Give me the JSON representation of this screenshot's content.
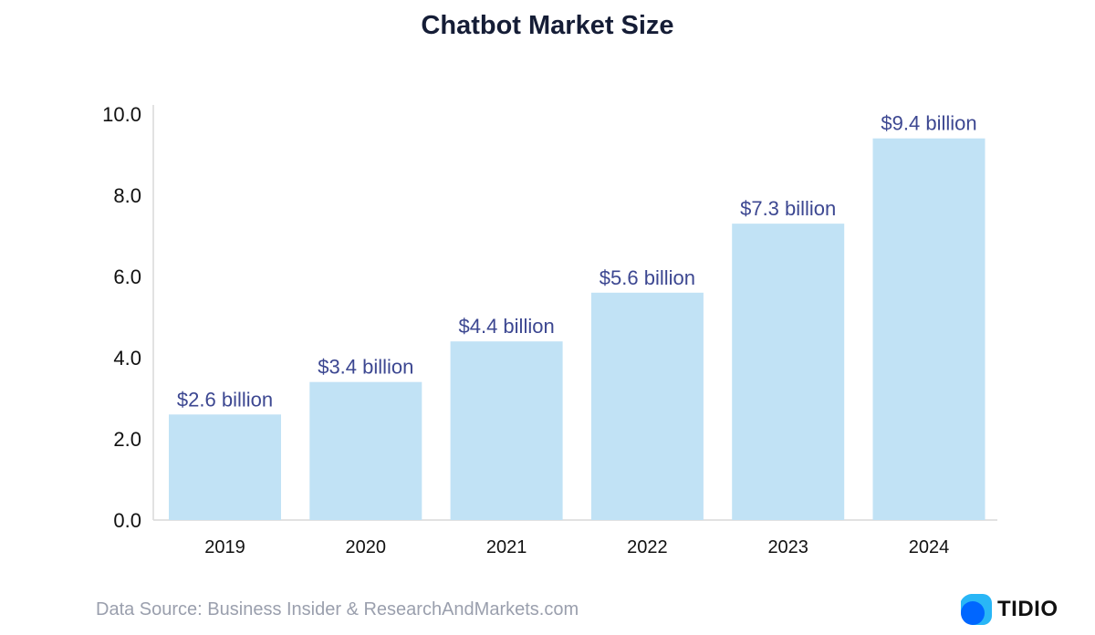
{
  "chart_data": {
    "type": "bar",
    "title": "Chatbot Market Size",
    "xlabel": "",
    "ylabel": "",
    "categories": [
      "2019",
      "2020",
      "2021",
      "2022",
      "2023",
      "2024"
    ],
    "values": [
      2.6,
      3.4,
      4.4,
      5.6,
      7.3,
      9.4
    ],
    "data_labels": [
      "$2.6 billion",
      "$3.4 billion",
      "$4.4 billion",
      "$5.6 billion",
      "$7.3 billion",
      "$9.4 billion"
    ],
    "ylim": [
      0,
      10
    ],
    "yticks": [
      0,
      2,
      4,
      6,
      8,
      10
    ],
    "ytick_labels": [
      "0.0",
      "2.0",
      "4.0",
      "6.0",
      "8.0",
      "10.0"
    ],
    "grid": false,
    "legend": "none",
    "colors": {
      "bar": "#c1e2f5",
      "data_label": "#3c4791",
      "axis": "#d9d9d9"
    }
  },
  "footer": {
    "source_text": "Data Source: Business Insider & ResearchAndMarkets.com"
  },
  "brand": {
    "name": "TIDIO",
    "icon": "tidio-logo-icon",
    "colors": [
      "#0066ff",
      "#29b6f6"
    ]
  }
}
